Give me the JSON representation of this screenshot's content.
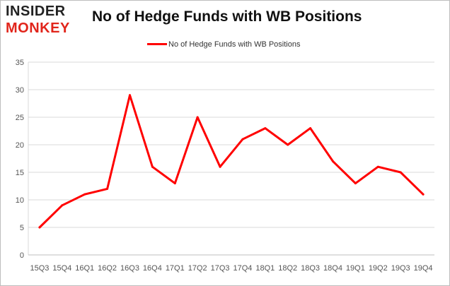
{
  "logo": {
    "line1": "INSIDER",
    "line2": "MONKEY",
    "color_dark": "#222222",
    "color_accent": "#e1251b"
  },
  "chart_data": {
    "type": "line",
    "title": "No of Hedge Funds with WB Positions",
    "xlabel": "",
    "ylabel": "",
    "categories": [
      "15Q3",
      "15Q4",
      "16Q1",
      "16Q2",
      "16Q3",
      "16Q4",
      "17Q1",
      "17Q2",
      "17Q3",
      "17Q4",
      "18Q1",
      "18Q2",
      "18Q3",
      "18Q4",
      "19Q1",
      "19Q2",
      "19Q3",
      "19Q4"
    ],
    "series": [
      {
        "name": "No of Hedge Funds with WB Positions",
        "color": "#ff0000",
        "values": [
          5,
          9,
          11,
          12,
          29,
          16,
          13,
          25,
          16,
          21,
          23,
          20,
          23,
          17,
          13,
          16,
          15,
          11
        ]
      }
    ],
    "ylim": [
      0,
      35
    ],
    "yticks": [
      0,
      5,
      10,
      15,
      20,
      25,
      30,
      35
    ],
    "grid": true,
    "legend_position": "top"
  }
}
